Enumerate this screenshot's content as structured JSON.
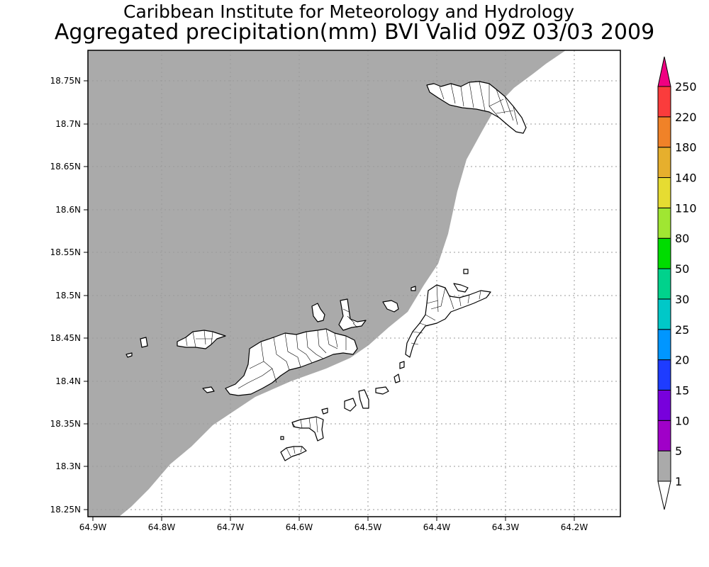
{
  "titles": {
    "line1": "Caribbean Institute for Meteorology and Hydrology",
    "line2": "Aggregated precipitation(mm) BVI Valid 09Z 03/03 2009"
  },
  "map": {
    "lat_ticks": [
      "18.75N",
      "18.7N",
      "18.65N",
      "18.6N",
      "18.55N",
      "18.5N",
      "18.45N",
      "18.4N",
      "18.35N",
      "18.3N",
      "18.25N"
    ],
    "lon_ticks": [
      "64.9W",
      "64.8W",
      "64.7W",
      "64.6W",
      "64.5W",
      "64.4W",
      "64.3W",
      "64.2W"
    ],
    "shaded_color": "#aaaaaa",
    "grid": true
  },
  "colorbar": {
    "labels": [
      "1",
      "5",
      "10",
      "15",
      "20",
      "25",
      "30",
      "50",
      "80",
      "110",
      "140",
      "180",
      "220",
      "250"
    ],
    "colors": [
      "#aaaaaa",
      "#a000c8",
      "#7800dc",
      "#1e3cff",
      "#0096ff",
      "#00c8c8",
      "#00d28c",
      "#00dc00",
      "#a0e632",
      "#e6dc32",
      "#e6af2d",
      "#f08228",
      "#fa3c3c",
      "#f00082"
    ]
  }
}
